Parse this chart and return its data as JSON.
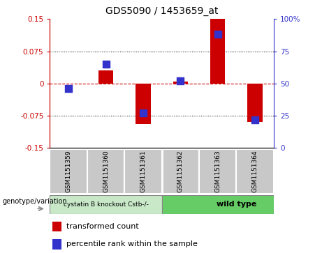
{
  "title": "GDS5090 / 1453659_at",
  "samples": [
    "GSM1151359",
    "GSM1151360",
    "GSM1151361",
    "GSM1151362",
    "GSM1151363",
    "GSM1151364"
  ],
  "transformed_count": [
    0.0,
    0.03,
    -0.095,
    0.005,
    0.15,
    -0.09
  ],
  "percentile_rank": [
    46,
    65,
    27,
    52,
    88,
    22
  ],
  "ylim_left": [
    -0.15,
    0.15
  ],
  "ylim_right": [
    0,
    100
  ],
  "yticks_left": [
    -0.15,
    -0.075,
    0,
    0.075,
    0.15
  ],
  "yticks_right": [
    0,
    25,
    50,
    75,
    100
  ],
  "bar_color": "#cc0000",
  "dot_color": "#3333cc",
  "bar_width": 0.4,
  "dot_size": 50,
  "legend_bar_label": "transformed count",
  "legend_dot_label": "percentile rank within the sample",
  "genotype_label": "genotype/variation",
  "group1_label": "cystatin B knockout Cstb-/-",
  "group2_label": "wild type",
  "group1_color": "#c8e8c8",
  "group2_color": "#66cc66",
  "sample_box_color": "#c8c8c8",
  "title_fontsize": 10,
  "tick_fontsize": 7.5,
  "label_fontsize": 7.5,
  "legend_fontsize": 8
}
